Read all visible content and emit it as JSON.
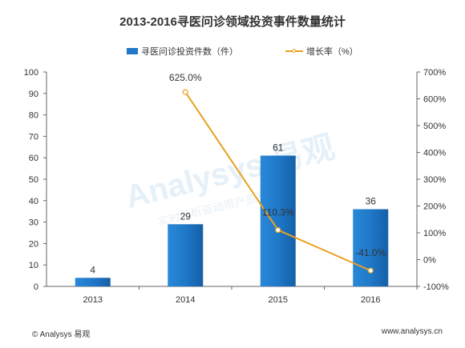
{
  "chart_data": {
    "type": "bar",
    "title": "2013-2016寻医问诊领域投资事件数量统计",
    "categories": [
      "2013",
      "2014",
      "2015",
      "2016"
    ],
    "series": [
      {
        "name": "寻医问诊投资件数（件）",
        "type": "bar",
        "axis": "left",
        "values": [
          4,
          29,
          61,
          36
        ],
        "labels": [
          "4",
          "29",
          "61",
          "36"
        ]
      },
      {
        "name": "增长率（%）",
        "type": "line",
        "axis": "right",
        "values": [
          null,
          625.0,
          110.3,
          -41.0
        ],
        "labels": [
          "",
          "625.0%",
          "110.3%",
          "-41.0%"
        ]
      }
    ],
    "ylim": [
      0,
      100
    ],
    "yticks": [
      0,
      10,
      20,
      30,
      40,
      50,
      60,
      70,
      80,
      90,
      100
    ],
    "y2lim": [
      -100,
      700
    ],
    "y2ticks": [
      "-100%",
      "0%",
      "100%",
      "200%",
      "300%",
      "400%",
      "500%",
      "600%",
      "700%"
    ],
    "grid": false,
    "legend": "top-center",
    "colors": {
      "bar": "#1f78c8",
      "line": "#e8a020"
    }
  },
  "footer": {
    "left": "© Analysys 易观",
    "right": "www.analysys.cn"
  },
  "watermark": {
    "brand": "易观",
    "tagline": "实时分析驱动用户资产成长"
  }
}
